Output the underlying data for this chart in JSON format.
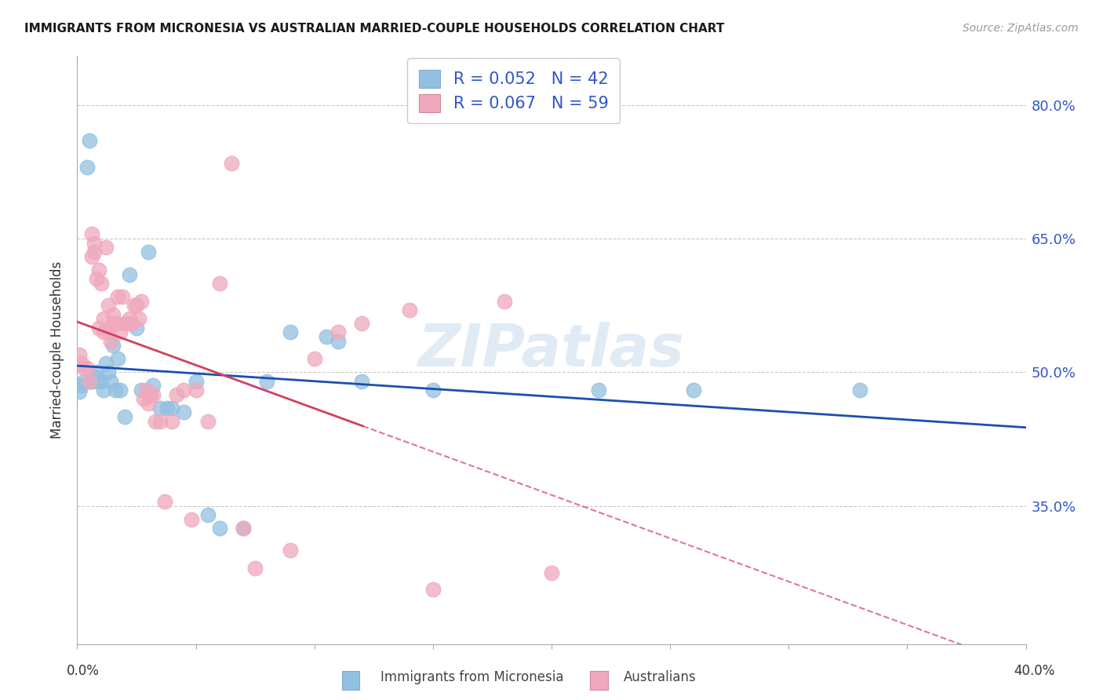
{
  "title": "IMMIGRANTS FROM MICRONESIA VS AUSTRALIAN MARRIED-COUPLE HOUSEHOLDS CORRELATION CHART",
  "source": "Source: ZipAtlas.com",
  "ylabel": "Married-couple Households",
  "ytick_vals": [
    0.8,
    0.65,
    0.5,
    0.35
  ],
  "ytick_labels": [
    "80.0%",
    "65.0%",
    "50.0%",
    "35.0%"
  ],
  "xlim": [
    0.0,
    0.4
  ],
  "ylim": [
    0.195,
    0.855
  ],
  "R1": 0.052,
  "N1": 42,
  "R2": 0.067,
  "N2": 59,
  "blue_color": "#92c0e0",
  "pink_color": "#f0a8bc",
  "blue_line_color": "#1a50b0",
  "pink_line_color": "#d04060",
  "watermark": "ZIPatlas",
  "blue_x": [
    0.001,
    0.002,
    0.003,
    0.004,
    0.005,
    0.006,
    0.006,
    0.007,
    0.008,
    0.009,
    0.01,
    0.011,
    0.012,
    0.013,
    0.014,
    0.015,
    0.016,
    0.017,
    0.018,
    0.02,
    0.022,
    0.025,
    0.027,
    0.03,
    0.032,
    0.035,
    0.038,
    0.04,
    0.045,
    0.05,
    0.055,
    0.06,
    0.07,
    0.08,
    0.09,
    0.105,
    0.11,
    0.12,
    0.15,
    0.22,
    0.26,
    0.33
  ],
  "blue_y": [
    0.478,
    0.485,
    0.49,
    0.73,
    0.76,
    0.49,
    0.49,
    0.495,
    0.5,
    0.49,
    0.49,
    0.48,
    0.51,
    0.5,
    0.49,
    0.53,
    0.48,
    0.515,
    0.48,
    0.45,
    0.61,
    0.55,
    0.48,
    0.635,
    0.485,
    0.46,
    0.46,
    0.46,
    0.455,
    0.49,
    0.34,
    0.325,
    0.325,
    0.49,
    0.545,
    0.54,
    0.535,
    0.49,
    0.48,
    0.48,
    0.48,
    0.48
  ],
  "pink_x": [
    0.001,
    0.002,
    0.003,
    0.004,
    0.005,
    0.006,
    0.006,
    0.007,
    0.007,
    0.008,
    0.009,
    0.009,
    0.01,
    0.011,
    0.011,
    0.012,
    0.013,
    0.013,
    0.014,
    0.015,
    0.015,
    0.016,
    0.017,
    0.018,
    0.019,
    0.02,
    0.021,
    0.022,
    0.023,
    0.024,
    0.025,
    0.026,
    0.027,
    0.028,
    0.029,
    0.03,
    0.031,
    0.032,
    0.033,
    0.035,
    0.037,
    0.04,
    0.042,
    0.045,
    0.048,
    0.05,
    0.055,
    0.06,
    0.065,
    0.07,
    0.075,
    0.09,
    0.1,
    0.11,
    0.12,
    0.14,
    0.15,
    0.18,
    0.2
  ],
  "pink_y": [
    0.52,
    0.51,
    0.505,
    0.505,
    0.49,
    0.655,
    0.63,
    0.645,
    0.635,
    0.605,
    0.615,
    0.55,
    0.6,
    0.56,
    0.545,
    0.64,
    0.545,
    0.575,
    0.535,
    0.555,
    0.565,
    0.555,
    0.585,
    0.545,
    0.585,
    0.555,
    0.555,
    0.56,
    0.555,
    0.575,
    0.575,
    0.56,
    0.58,
    0.47,
    0.48,
    0.465,
    0.475,
    0.475,
    0.445,
    0.445,
    0.355,
    0.445,
    0.475,
    0.48,
    0.335,
    0.48,
    0.445,
    0.6,
    0.735,
    0.325,
    0.28,
    0.3,
    0.515,
    0.545,
    0.555,
    0.57,
    0.256,
    0.58,
    0.275
  ]
}
